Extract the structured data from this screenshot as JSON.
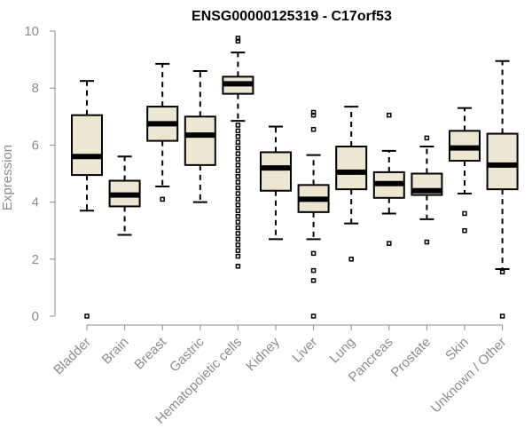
{
  "chart_data": {
    "type": "boxplot",
    "title": "ENSG00000125319 - C17orf53",
    "xlabel": "",
    "ylabel": "Expression",
    "ylim": [
      0,
      10
    ],
    "yticks": [
      0,
      2,
      4,
      6,
      8,
      10
    ],
    "box_color": "#ede7d2",
    "categories": [
      "Bladder",
      "Brain",
      "Breast",
      "Gastric",
      "Hematopoietic cells",
      "Kidney",
      "Liver",
      "Lung",
      "Pancreas",
      "Prostate",
      "Skin",
      "Unknown / Other"
    ],
    "boxes": [
      {
        "name": "Bladder",
        "min": 3.7,
        "q1": 4.95,
        "median": 5.6,
        "q3": 7.05,
        "max": 8.25,
        "outliers": [
          0.0
        ]
      },
      {
        "name": "Brain",
        "min": 2.85,
        "q1": 3.85,
        "median": 4.25,
        "q3": 4.75,
        "max": 5.6,
        "outliers": []
      },
      {
        "name": "Breast",
        "min": 4.55,
        "q1": 6.15,
        "median": 6.75,
        "q3": 7.35,
        "max": 8.85,
        "outliers": [
          4.1
        ]
      },
      {
        "name": "Gastric",
        "min": 4.0,
        "q1": 5.3,
        "median": 6.35,
        "q3": 7.0,
        "max": 8.6,
        "outliers": []
      },
      {
        "name": "Hematopoietic cells",
        "min": 6.85,
        "q1": 7.8,
        "median": 8.15,
        "q3": 8.4,
        "max": 9.25,
        "outliers": [
          9.75,
          9.65,
          6.7,
          6.5,
          6.3,
          6.1,
          5.9,
          5.7,
          5.5,
          5.3,
          5.1,
          4.9,
          4.7,
          4.5,
          4.3,
          4.1,
          3.9,
          3.7,
          3.5,
          3.3,
          3.1,
          2.9,
          2.7,
          2.5,
          2.3,
          2.1,
          1.75
        ]
      },
      {
        "name": "Kidney",
        "min": 2.7,
        "q1": 4.4,
        "median": 5.2,
        "q3": 5.75,
        "max": 6.65,
        "outliers": []
      },
      {
        "name": "Liver",
        "min": 2.7,
        "q1": 3.65,
        "median": 4.1,
        "q3": 4.6,
        "max": 5.65,
        "outliers": [
          7.15,
          7.05,
          6.55,
          2.2,
          1.6,
          1.25,
          0.0
        ]
      },
      {
        "name": "Lung",
        "min": 3.25,
        "q1": 4.45,
        "median": 5.05,
        "q3": 5.95,
        "max": 7.35,
        "outliers": [
          2.0
        ]
      },
      {
        "name": "Pancreas",
        "min": 3.6,
        "q1": 4.15,
        "median": 4.65,
        "q3": 5.05,
        "max": 5.8,
        "outliers": [
          7.05,
          2.55
        ]
      },
      {
        "name": "Prostate",
        "min": 3.4,
        "q1": 4.25,
        "median": 4.4,
        "q3": 5.0,
        "max": 5.95,
        "outliers": [
          6.25,
          2.6
        ]
      },
      {
        "name": "Skin",
        "min": 4.3,
        "q1": 5.45,
        "median": 5.9,
        "q3": 6.5,
        "max": 7.3,
        "outliers": [
          3.6,
          3.0
        ]
      },
      {
        "name": "Unknown / Other",
        "min": 1.65,
        "q1": 4.45,
        "median": 5.3,
        "q3": 6.4,
        "max": 8.95,
        "outliers": [
          1.55,
          0.0
        ]
      }
    ]
  }
}
